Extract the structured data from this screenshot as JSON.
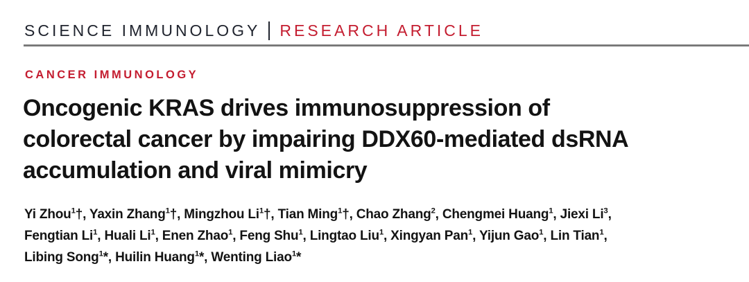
{
  "journal_header": {
    "journal_name": "SCIENCE IMMUNOLOGY",
    "article_type": "RESEARCH ARTICLE"
  },
  "section_label": "CANCER IMMUNOLOGY",
  "article": {
    "title_lines": [
      "Oncogenic KRAS drives immunosuppression of",
      "colorectal cancer by impairing DDX60-mediated dsRNA",
      "accumulation and viral mimicry"
    ]
  },
  "authors": {
    "lines": [
      [
        {
          "name": "Yi Zhou",
          "sup": "1",
          "marker": "†"
        },
        {
          "name": "Yaxin Zhang",
          "sup": "1",
          "marker": "†"
        },
        {
          "name": "Mingzhou Li",
          "sup": "1",
          "marker": "†"
        },
        {
          "name": "Tian Ming",
          "sup": "1",
          "marker": "†"
        },
        {
          "name": "Chao Zhang",
          "sup": "2",
          "marker": ""
        },
        {
          "name": "Chengmei Huang",
          "sup": "1",
          "marker": ""
        },
        {
          "name": "Jiexi Li",
          "sup": "3",
          "marker": ""
        }
      ],
      [
        {
          "name": "Fengtian Li",
          "sup": "1",
          "marker": ""
        },
        {
          "name": "Huali Li",
          "sup": "1",
          "marker": ""
        },
        {
          "name": "Enen Zhao",
          "sup": "1",
          "marker": ""
        },
        {
          "name": "Feng Shu",
          "sup": "1",
          "marker": ""
        },
        {
          "name": "Lingtao Liu",
          "sup": "1",
          "marker": ""
        },
        {
          "name": "Xingyan Pan",
          "sup": "1",
          "marker": ""
        },
        {
          "name": "Yijun Gao",
          "sup": "1",
          "marker": ""
        },
        {
          "name": "Lin Tian",
          "sup": "1",
          "marker": ""
        }
      ],
      [
        {
          "name": "Libing Song",
          "sup": "1",
          "marker": "*"
        },
        {
          "name": "Huilin Huang",
          "sup": "1",
          "marker": "*"
        },
        {
          "name": "Wenting Liao",
          "sup": "1",
          "marker": "*"
        }
      ]
    ]
  },
  "colors": {
    "accent_red": "#c41d30",
    "masthead_dark": "#20242e",
    "rule_gray": "#7a7a7a",
    "text_black": "#131313",
    "background": "#ffffff"
  }
}
